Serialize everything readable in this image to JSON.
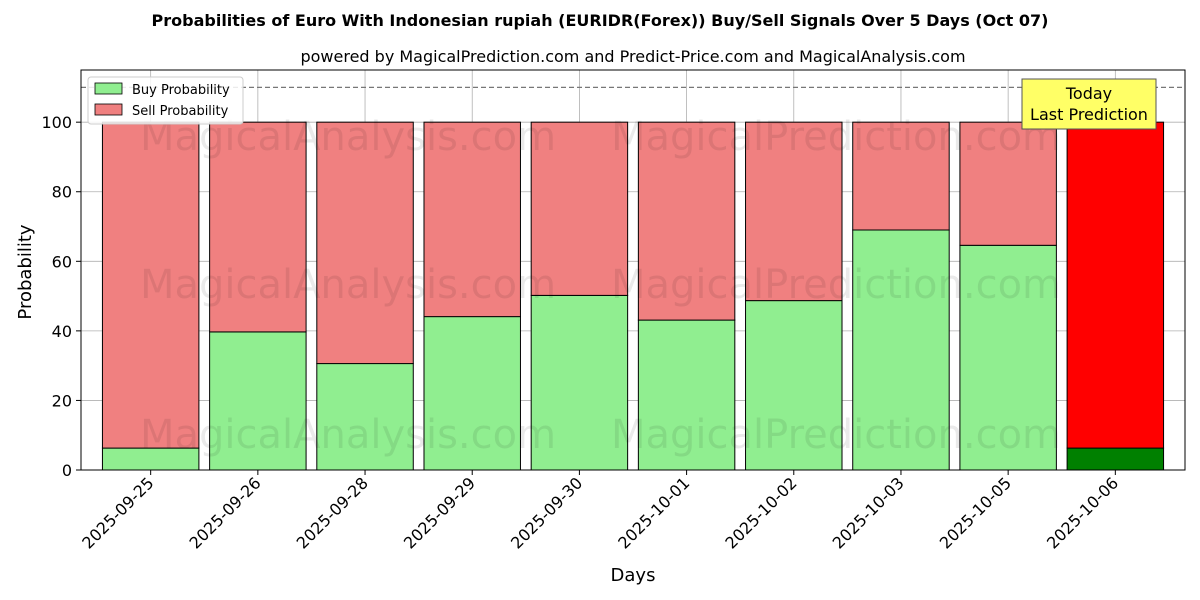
{
  "chart_data": {
    "type": "bar",
    "stacked": true,
    "title": "Probabilities of Euro With Indonesian rupiah (EURIDR(Forex)) Buy/Sell Signals Over 5 Days (Oct 07)",
    "subtitle": "powered by MagicalPrediction.com and Predict-Price.com and MagicalAnalysis.com",
    "xlabel": "Days",
    "ylabel": "Probability",
    "ylim": [
      0,
      115
    ],
    "yticks": [
      0,
      20,
      40,
      60,
      80,
      100
    ],
    "reference_line": 110,
    "grid": true,
    "legend_position": "top-left",
    "categories": [
      "2025-09-25",
      "2025-09-26",
      "2025-09-28",
      "2025-09-29",
      "2025-09-30",
      "2025-10-01",
      "2025-10-02",
      "2025-10-03",
      "2025-10-05",
      "2025-10-06"
    ],
    "series": [
      {
        "name": "Buy Probability",
        "color": "#90ee90",
        "highlight_color": "#008000",
        "values": [
          6.3,
          39.7,
          30.6,
          44.1,
          50.2,
          43.1,
          48.7,
          69.0,
          64.6,
          6.3
        ]
      },
      {
        "name": "Sell Probability",
        "color": "#f08080",
        "highlight_color": "#ff0000",
        "values": [
          93.7,
          60.3,
          69.4,
          55.9,
          49.8,
          56.9,
          51.3,
          31.0,
          35.4,
          93.7
        ]
      }
    ],
    "highlight_index": 9,
    "annotation": {
      "line1": "Today",
      "line2": "Last Prediction",
      "color": "#ffff66"
    },
    "watermarks": [
      "MagicalAnalysis.com",
      "MagicalPrediction.com"
    ]
  }
}
